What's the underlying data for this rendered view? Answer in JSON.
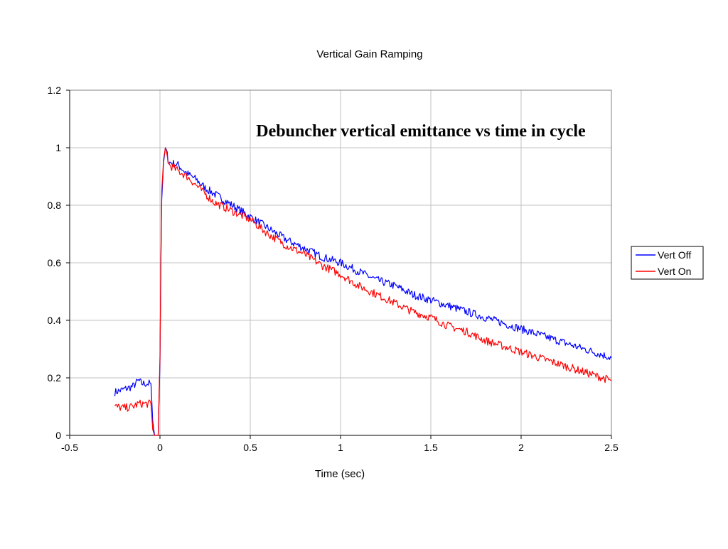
{
  "chart_data": {
    "type": "line",
    "title": "Vertical Gain Ramping",
    "annotation": "Debuncher vertical emittance vs time in cycle",
    "xlabel": "Time (sec)",
    "ylabel": "",
    "xlim": [
      -0.5,
      2.5
    ],
    "ylim": [
      0,
      1.2
    ],
    "x_ticks": [
      -0.5,
      0,
      0.5,
      1,
      1.5,
      2,
      2.5
    ],
    "y_ticks": [
      0,
      0.2,
      0.4,
      0.6,
      0.8,
      1,
      1.2
    ],
    "x_tick_labels": [
      "-0.5",
      "0",
      "0.5",
      "1",
      "1.5",
      "2",
      "2.5"
    ],
    "y_tick_labels": [
      "0",
      "0.2",
      "0.4",
      "0.6",
      "0.8",
      "1",
      "1.2"
    ],
    "grid": "vertical and horizontal major gridlines",
    "legend_position": "right",
    "series": [
      {
        "name": "Vert Off",
        "color": "#0000ff",
        "x": [
          -0.25,
          -0.2,
          -0.15,
          -0.12,
          -0.1,
          -0.05,
          -0.04,
          -0.03,
          -0.02,
          -0.01,
          0,
          0.005,
          0.01,
          0.02,
          0.03,
          0.05,
          0.1,
          0.15,
          0.2,
          0.25,
          0.3,
          0.4,
          0.5,
          0.6,
          0.7,
          0.8,
          0.9,
          1,
          1.1,
          1.2,
          1.3,
          1.4,
          1.5,
          1.6,
          1.7,
          1.8,
          1.9,
          2,
          2.1,
          2.2,
          2.3,
          2.4,
          2.5
        ],
        "values": [
          0.15,
          0.16,
          0.17,
          0.19,
          0.18,
          0.18,
          0.05,
          0.0,
          0.0,
          0.0,
          0.25,
          0.6,
          0.82,
          0.95,
          1.0,
          0.95,
          0.94,
          0.91,
          0.89,
          0.86,
          0.84,
          0.8,
          0.76,
          0.72,
          0.68,
          0.65,
          0.62,
          0.6,
          0.57,
          0.54,
          0.52,
          0.49,
          0.47,
          0.45,
          0.43,
          0.41,
          0.39,
          0.37,
          0.35,
          0.33,
          0.31,
          0.29,
          0.27
        ]
      },
      {
        "name": "Vert On",
        "color": "#ff0000",
        "x": [
          -0.25,
          -0.2,
          -0.15,
          -0.12,
          -0.1,
          -0.05,
          -0.04,
          -0.03,
          -0.02,
          -0.01,
          0,
          0.005,
          0.01,
          0.02,
          0.03,
          0.05,
          0.1,
          0.15,
          0.2,
          0.25,
          0.3,
          0.4,
          0.5,
          0.6,
          0.7,
          0.8,
          0.9,
          1,
          1.1,
          1.2,
          1.3,
          1.4,
          1.5,
          1.6,
          1.7,
          1.8,
          1.9,
          2,
          2.1,
          2.2,
          2.3,
          2.4,
          2.5
        ],
        "values": [
          0.1,
          0.095,
          0.1,
          0.11,
          0.11,
          0.11,
          0.02,
          0.0,
          0.0,
          0.0,
          0.27,
          0.62,
          0.85,
          0.96,
          1.0,
          0.94,
          0.92,
          0.9,
          0.87,
          0.84,
          0.81,
          0.78,
          0.75,
          0.7,
          0.66,
          0.63,
          0.59,
          0.56,
          0.52,
          0.49,
          0.46,
          0.43,
          0.41,
          0.38,
          0.36,
          0.33,
          0.31,
          0.29,
          0.27,
          0.25,
          0.23,
          0.21,
          0.19
        ]
      }
    ]
  }
}
